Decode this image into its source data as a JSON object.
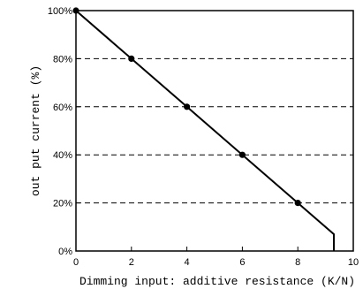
{
  "chart_data": {
    "type": "line",
    "xlabel": "Dimming input: additive resistance (K/N)",
    "ylabel": "out put current (%)",
    "xlim": [
      0,
      10
    ],
    "ylim": [
      0,
      100
    ],
    "x_ticks": [
      "0",
      "2",
      "4",
      "6",
      "8",
      "10"
    ],
    "y_ticks": [
      "0%",
      "20%",
      "40%",
      "60%",
      "80%",
      "100%"
    ],
    "grid": "dashed horizontal",
    "series": [
      {
        "x": [
          0,
          2,
          4,
          6,
          8,
          9.3,
          9.3
        ],
        "y": [
          100,
          80,
          60,
          40,
          20,
          7,
          0
        ],
        "markers": [
          [
            0,
            100
          ],
          [
            2,
            80
          ],
          [
            4,
            60
          ],
          [
            6,
            40
          ],
          [
            8,
            20
          ]
        ]
      }
    ]
  },
  "colors": {
    "line": "#000000",
    "grid": "#000000",
    "background": "#ffffff"
  }
}
